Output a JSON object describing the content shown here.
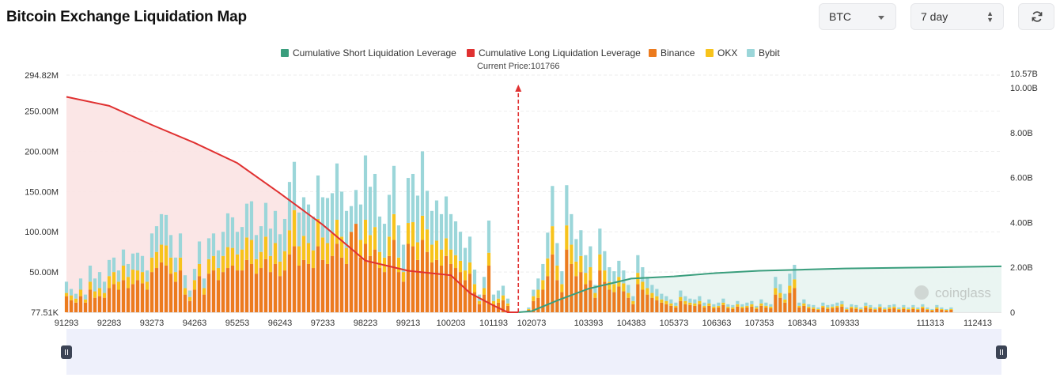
{
  "header": {
    "title": "Bitcoin Exchange Liquidation Map",
    "symbol_select": "BTC",
    "range_select": "7 day",
    "icons": {
      "symbol_caret": "chevron-down-icon",
      "range_caret": "up-down-icon",
      "refresh": "refresh-icon"
    }
  },
  "colors": {
    "short_line": "#3a9e7d",
    "long_line": "#e03131",
    "binance": "#ec7b1e",
    "okx": "#f7c31c",
    "bybit": "#9bd6d9",
    "long_area": "#fbe3e3",
    "short_area": "#e8f4f1",
    "price_marker": "#e03131"
  },
  "chart_data": {
    "type": "bar",
    "stacked": true,
    "legend": [
      "Cumulative Short Liquidation Leverage",
      "Cumulative Long Liquidation Leverage",
      "Binance",
      "OKX",
      "Bybit"
    ],
    "legend_position": "top-center",
    "current_price_label": "Current Price:101766",
    "current_price": 101766,
    "x_ticks": [
      "91293",
      "92283",
      "93273",
      "94263",
      "95253",
      "96243",
      "97233",
      "98223",
      "99213",
      "100203",
      "101193",
      "102073",
      "103393",
      "104383",
      "105373",
      "106363",
      "107353",
      "108343",
      "109333",
      "111313",
      "112413"
    ],
    "x_tick_values": [
      91293,
      92283,
      93273,
      94263,
      95253,
      96243,
      97233,
      98223,
      99213,
      100203,
      101193,
      102073,
      103393,
      104383,
      105373,
      106363,
      107353,
      108343,
      109333,
      111313,
      112413
    ],
    "x_range": [
      91293,
      112963
    ],
    "y_left_ticks": [
      "294.82M",
      "250.00M",
      "200.00M",
      "150.00M",
      "100.00M",
      "50.00M",
      "77.51K"
    ],
    "y_left_range": [
      0,
      294.82
    ],
    "y_left_unit": "M",
    "y_right_ticks": [
      "10.57B",
      "10.00B",
      "8.00B",
      "6.00B",
      "4.00B",
      "2.00B",
      "0"
    ],
    "y_right_range": [
      0,
      10.57
    ],
    "y_right_unit": "B",
    "bar_price_start": 91293,
    "bar_price_step": 110,
    "series": [
      {
        "name": "Binance",
        "values": [
          20,
          15,
          12,
          20,
          12,
          28,
          18,
          20,
          18,
          30,
          35,
          28,
          40,
          30,
          35,
          40,
          36,
          28,
          50,
          55,
          62,
          58,
          48,
          38,
          52,
          22,
          14,
          28,
          45,
          22,
          48,
          52,
          40,
          50,
          55,
          58,
          52,
          52,
          65,
          60,
          48,
          55,
          66,
          50,
          60,
          45,
          52,
          72,
          82,
          58,
          65,
          60,
          55,
          82,
          65,
          60,
          70,
          85,
          68,
          60,
          100,
          110,
          68,
          85,
          70,
          78,
          55,
          50,
          70,
          90,
          50,
          38,
          85,
          82,
          65,
          90,
          75,
          62,
          65,
          58,
          70,
          60,
          55,
          50,
          40,
          48,
          25,
          10,
          22,
          58,
          10,
          12,
          15,
          8,
          12,
          15,
          8,
          10,
          18,
          10,
          12,
          20,
          50,
          52,
          78,
          55,
          40,
          48,
          55,
          72,
          38,
          25,
          55,
          22,
          18,
          42,
          15,
          0,
          0,
          0,
          0,
          0,
          0,
          0,
          0,
          0,
          0,
          0,
          0,
          0,
          0,
          0,
          0,
          0,
          0,
          0,
          0,
          0,
          0,
          0,
          0,
          0,
          0,
          0,
          0,
          0,
          0,
          0,
          0,
          0,
          0,
          0,
          0,
          0,
          0,
          0,
          0,
          0,
          0,
          0,
          0,
          0,
          0,
          0,
          0,
          0,
          0,
          0,
          0,
          0,
          0,
          0,
          0,
          0,
          0,
          0,
          0,
          0,
          0,
          0,
          0,
          0,
          0,
          0,
          0,
          0,
          0,
          0,
          0,
          0,
          0,
          0,
          0,
          0,
          0,
          0,
          0,
          0,
          0,
          0,
          0,
          0,
          0,
          0,
          0,
          0
        ],
        "short_values": [
          3,
          14,
          18,
          28,
          45,
          72,
          40,
          25,
          78,
          60,
          45,
          50,
          35,
          40,
          18,
          52,
          38,
          28,
          25,
          32,
          26,
          18,
          10,
          35,
          28,
          22,
          18,
          15,
          12,
          10,
          8,
          6,
          14,
          10,
          9,
          8,
          10,
          6,
          8,
          5,
          6,
          9,
          5,
          4,
          7,
          5,
          6,
          7,
          4,
          8,
          6,
          5,
          22,
          18,
          12,
          24,
          30,
          6,
          8,
          5,
          4,
          3,
          6,
          4,
          5,
          6,
          7,
          3,
          5,
          4,
          3,
          6,
          4,
          3,
          5,
          3,
          4,
          5,
          3,
          4,
          3,
          4,
          3,
          5,
          3,
          2,
          4,
          3,
          2,
          3
        ]
      },
      {
        "name": "OKX",
        "values": [
          4,
          6,
          5,
          8,
          4,
          10,
          8,
          10,
          6,
          15,
          15,
          10,
          18,
          14,
          18,
          12,
          14,
          10,
          18,
          20,
          22,
          25,
          20,
          12,
          16,
          8,
          5,
          12,
          15,
          8,
          18,
          18,
          15,
          20,
          26,
          22,
          20,
          26,
          28,
          30,
          18,
          20,
          28,
          20,
          26,
          18,
          24,
          30,
          45,
          24,
          30,
          26,
          22,
          34,
          28,
          26,
          28,
          30,
          26,
          20,
          0,
          0,
          22,
          30,
          26,
          28,
          20,
          18,
          24,
          32,
          18,
          12,
          26,
          30,
          22,
          30,
          28,
          22,
          24,
          20,
          22,
          18,
          16,
          14,
          12,
          14,
          10,
          4,
          8,
          16,
          4,
          5,
          6,
          3,
          5,
          6,
          3,
          4,
          6,
          4,
          4,
          6,
          15,
          16,
          28,
          18,
          12,
          16,
          18,
          22,
          12,
          8,
          18,
          8,
          6,
          14,
          6,
          0,
          0,
          0,
          0,
          0,
          0,
          0,
          0,
          0,
          0,
          0,
          0,
          0,
          0,
          0,
          0,
          0,
          0,
          0,
          0,
          0,
          0,
          0,
          0,
          0,
          0,
          0,
          0,
          0,
          0,
          0,
          0,
          0,
          0,
          0,
          0,
          0,
          0,
          0,
          0,
          0,
          0,
          0,
          0,
          0,
          0,
          0,
          0,
          0,
          0,
          0,
          0,
          0,
          0,
          0,
          0,
          0,
          0,
          0,
          0,
          0,
          0,
          0,
          0,
          0,
          0,
          0,
          0,
          0,
          0,
          0,
          0,
          0,
          0,
          0,
          0,
          0,
          0,
          0,
          0,
          0,
          0,
          0,
          0,
          0,
          0,
          0,
          0,
          0,
          0
        ],
        "short_values": [
          1,
          6,
          10,
          12,
          22,
          35,
          18,
          10,
          30,
          24,
          18,
          20,
          14,
          16,
          6,
          20,
          14,
          10,
          10,
          12,
          10,
          6,
          4,
          14,
          10,
          8,
          6,
          5,
          4,
          4,
          3,
          2,
          5,
          4,
          3,
          3,
          4,
          2,
          3,
          2,
          2,
          3,
          2,
          2,
          3,
          2,
          2,
          3,
          2,
          3,
          2,
          2,
          8,
          6,
          4,
          9,
          11,
          2,
          3,
          2,
          2,
          1,
          2,
          2,
          2,
          2,
          3,
          1,
          2,
          2,
          1,
          2,
          2,
          1,
          2,
          1,
          2,
          2,
          1,
          2,
          1,
          2,
          1,
          2,
          1,
          1,
          2,
          1,
          1,
          1
        ]
      },
      {
        "name": "Bybit",
        "values": [
          14,
          8,
          6,
          14,
          6,
          20,
          16,
          20,
          14,
          20,
          18,
          14,
          20,
          16,
          20,
          22,
          20,
          14,
          30,
          32,
          38,
          38,
          28,
          18,
          30,
          16,
          8,
          14,
          28,
          12,
          26,
          28,
          22,
          30,
          42,
          38,
          28,
          28,
          42,
          48,
          30,
          32,
          42,
          34,
          40,
          34,
          40,
          60,
          60,
          42,
          48,
          48,
          42,
          54,
          50,
          56,
          50,
          70,
          56,
          46,
          32,
          42,
          44,
          80,
          60,
          66,
          44,
          42,
          52,
          60,
          40,
          34,
          56,
          60,
          58,
          80,
          48,
          42,
          50,
          44,
          52,
          44,
          42,
          36,
          28,
          32,
          18,
          8,
          14,
          40,
          8,
          10,
          12,
          6,
          10,
          12,
          6,
          8,
          12,
          6,
          8,
          12,
          56,
          60,
          100,
          56,
          42,
          50,
          56,
          80,
          38,
          22,
          48,
          18,
          14,
          38,
          10,
          0,
          0,
          0,
          0,
          0,
          0,
          0,
          0,
          0,
          0,
          0,
          0,
          0,
          0,
          0,
          0,
          0,
          0,
          0,
          0,
          0,
          0,
          0,
          0,
          0,
          0,
          0,
          0,
          0,
          0,
          0,
          0,
          0,
          0,
          0,
          0,
          0,
          0,
          0,
          0,
          0,
          0,
          0,
          0,
          0,
          0,
          0,
          0,
          0,
          0,
          0,
          0,
          0,
          0,
          0,
          0,
          0,
          0,
          0,
          0,
          0,
          0,
          0,
          0,
          0,
          0,
          0,
          0,
          0,
          0,
          0,
          0,
          0,
          0,
          0,
          0,
          0,
          0,
          0,
          0,
          0,
          0,
          0,
          0,
          0,
          0,
          0,
          0,
          0
        ],
        "short_values": [
          2,
          8,
          14,
          20,
          32,
          50,
          28,
          16,
          50,
          38,
          28,
          32,
          22,
          26,
          10,
          32,
          24,
          18,
          16,
          20,
          16,
          10,
          6,
          22,
          18,
          14,
          10,
          9,
          7,
          6,
          5,
          4,
          8,
          6,
          5,
          5,
          6,
          4,
          5,
          3,
          4,
          5,
          3,
          3,
          4,
          3,
          4,
          4,
          2,
          5,
          4,
          3,
          14,
          11,
          7,
          15,
          18,
          4,
          5,
          3,
          3,
          2,
          4,
          3,
          3,
          4,
          4,
          2,
          3,
          3,
          2,
          4,
          3,
          2,
          3,
          2,
          3,
          3,
          2,
          3,
          2,
          3,
          2,
          3,
          2,
          1,
          3,
          2,
          1,
          2
        ]
      }
    ],
    "long_cumulative_B": [
      {
        "x": 91293,
        "y": 9.6
      },
      {
        "x": 92283,
        "y": 9.2
      },
      {
        "x": 93273,
        "y": 8.35
      },
      {
        "x": 94263,
        "y": 7.55
      },
      {
        "x": 95253,
        "y": 6.65
      },
      {
        "x": 96243,
        "y": 5.3
      },
      {
        "x": 97233,
        "y": 3.9
      },
      {
        "x": 98223,
        "y": 2.3
      },
      {
        "x": 99213,
        "y": 1.85
      },
      {
        "x": 100203,
        "y": 1.65
      },
      {
        "x": 100650,
        "y": 0.85
      },
      {
        "x": 101193,
        "y": 0.3
      },
      {
        "x": 101520,
        "y": 0.0
      },
      {
        "x": 101766,
        "y": 0.0
      }
    ],
    "short_cumulative_B": [
      {
        "x": 101766,
        "y": 0.0
      },
      {
        "x": 102073,
        "y": 0.05
      },
      {
        "x": 102700,
        "y": 0.55
      },
      {
        "x": 103393,
        "y": 1.05
      },
      {
        "x": 104383,
        "y": 1.5
      },
      {
        "x": 105373,
        "y": 1.6
      },
      {
        "x": 106363,
        "y": 1.75
      },
      {
        "x": 107353,
        "y": 1.85
      },
      {
        "x": 108343,
        "y": 1.9
      },
      {
        "x": 109333,
        "y": 1.95
      },
      {
        "x": 111313,
        "y": 2.0
      },
      {
        "x": 112963,
        "y": 2.05
      }
    ],
    "watermark": "coinglass"
  }
}
